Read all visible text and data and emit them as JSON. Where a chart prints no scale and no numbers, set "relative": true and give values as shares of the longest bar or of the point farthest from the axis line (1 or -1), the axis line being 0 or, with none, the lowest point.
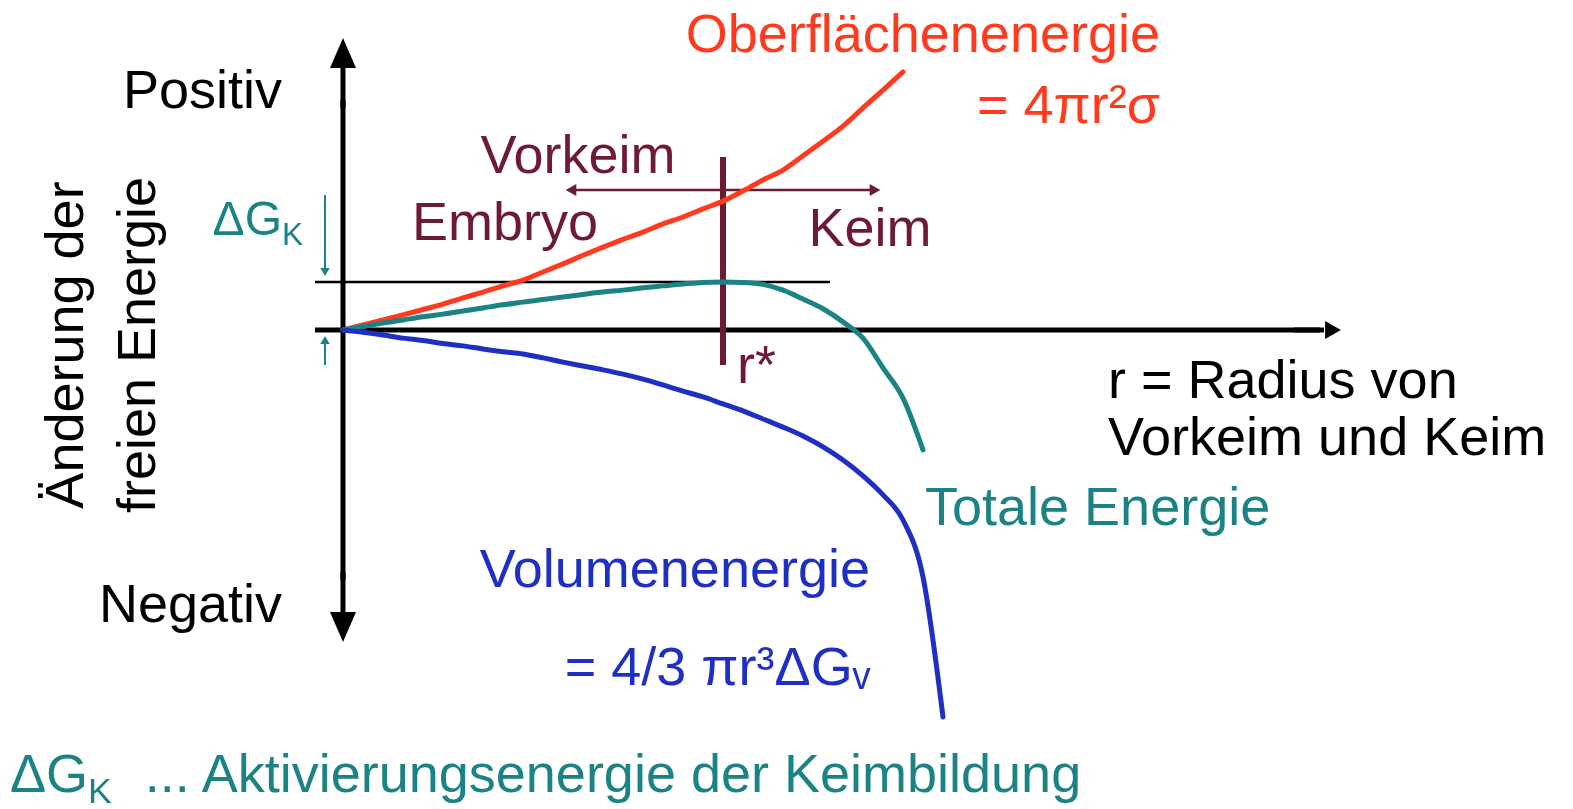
{
  "chart_data": {
    "type": "line",
    "relative": true,
    "categories": [
      null,
      null,
      null,
      null,
      null,
      null,
      null,
      null,
      null,
      null,
      null,
      null,
      null,
      null,
      null,
      null,
      null,
      null,
      null,
      null,
      null,
      null,
      null,
      null,
      null,
      null,
      null,
      null,
      null,
      null,
      null
    ],
    "series": [
      {
        "name": "Oberflächenenergie",
        "color": "#ff3a1f",
        "values": [
          0,
          0.013,
          0.026,
          0.039,
          0.053,
          0.067,
          0.083,
          0.098,
          0.114,
          0.129,
          0.15,
          0.171,
          0.193,
          0.214,
          0.234,
          0.253,
          0.274,
          0.292,
          0.313,
          0.333,
          0.359,
          0.388,
          0.413,
          0.45,
          0.488,
          0.527,
          0.574,
          0.62,
          0.667,
          null,
          null
        ]
      },
      {
        "name": "Totale Energie",
        "color": "#1b8383",
        "values": [
          0,
          0.009,
          0.018,
          0.026,
          0.034,
          0.041,
          0.049,
          0.057,
          0.065,
          0.072,
          0.079,
          0.085,
          0.092,
          0.098,
          0.103,
          0.109,
          0.114,
          0.119,
          0.123,
          0.124,
          0.123,
          0.118,
          0.103,
          0.08,
          0.055,
          0.021,
          -0.021,
          -0.098,
          -0.176,
          -0.31,
          null
        ]
      },
      {
        "name": "Volumenenergie",
        "color": "#1f2fc4",
        "values": [
          0,
          -0.006,
          -0.013,
          -0.021,
          -0.027,
          -0.035,
          -0.041,
          -0.049,
          -0.056,
          -0.062,
          -0.072,
          -0.083,
          -0.093,
          -0.103,
          -0.114,
          -0.127,
          -0.142,
          -0.158,
          -0.173,
          -0.191,
          -0.209,
          -0.23,
          -0.251,
          -0.274,
          -0.302,
          -0.336,
          -0.377,
          -0.426,
          -0.491,
          -0.638,
          -1
        ]
      }
    ],
    "xlabel": "r = Radius von Vorkeim und Keim",
    "ylabel": "Änderung der freien Energie",
    "ref_lines": [
      {
        "axis": "y",
        "value": 0.124
      }
    ],
    "annotations": [
      "Positiv",
      "Negativ",
      "Vorkeim",
      "Embryo",
      "Keim",
      "= 4πr²σ",
      "= 4/3 πr³ΔGᵥ",
      "ΔG$_{K}$",
      "r*",
      "ΔG$_{K}$ ... Aktivierungsenergie der Keimbildung"
    ]
  }
}
